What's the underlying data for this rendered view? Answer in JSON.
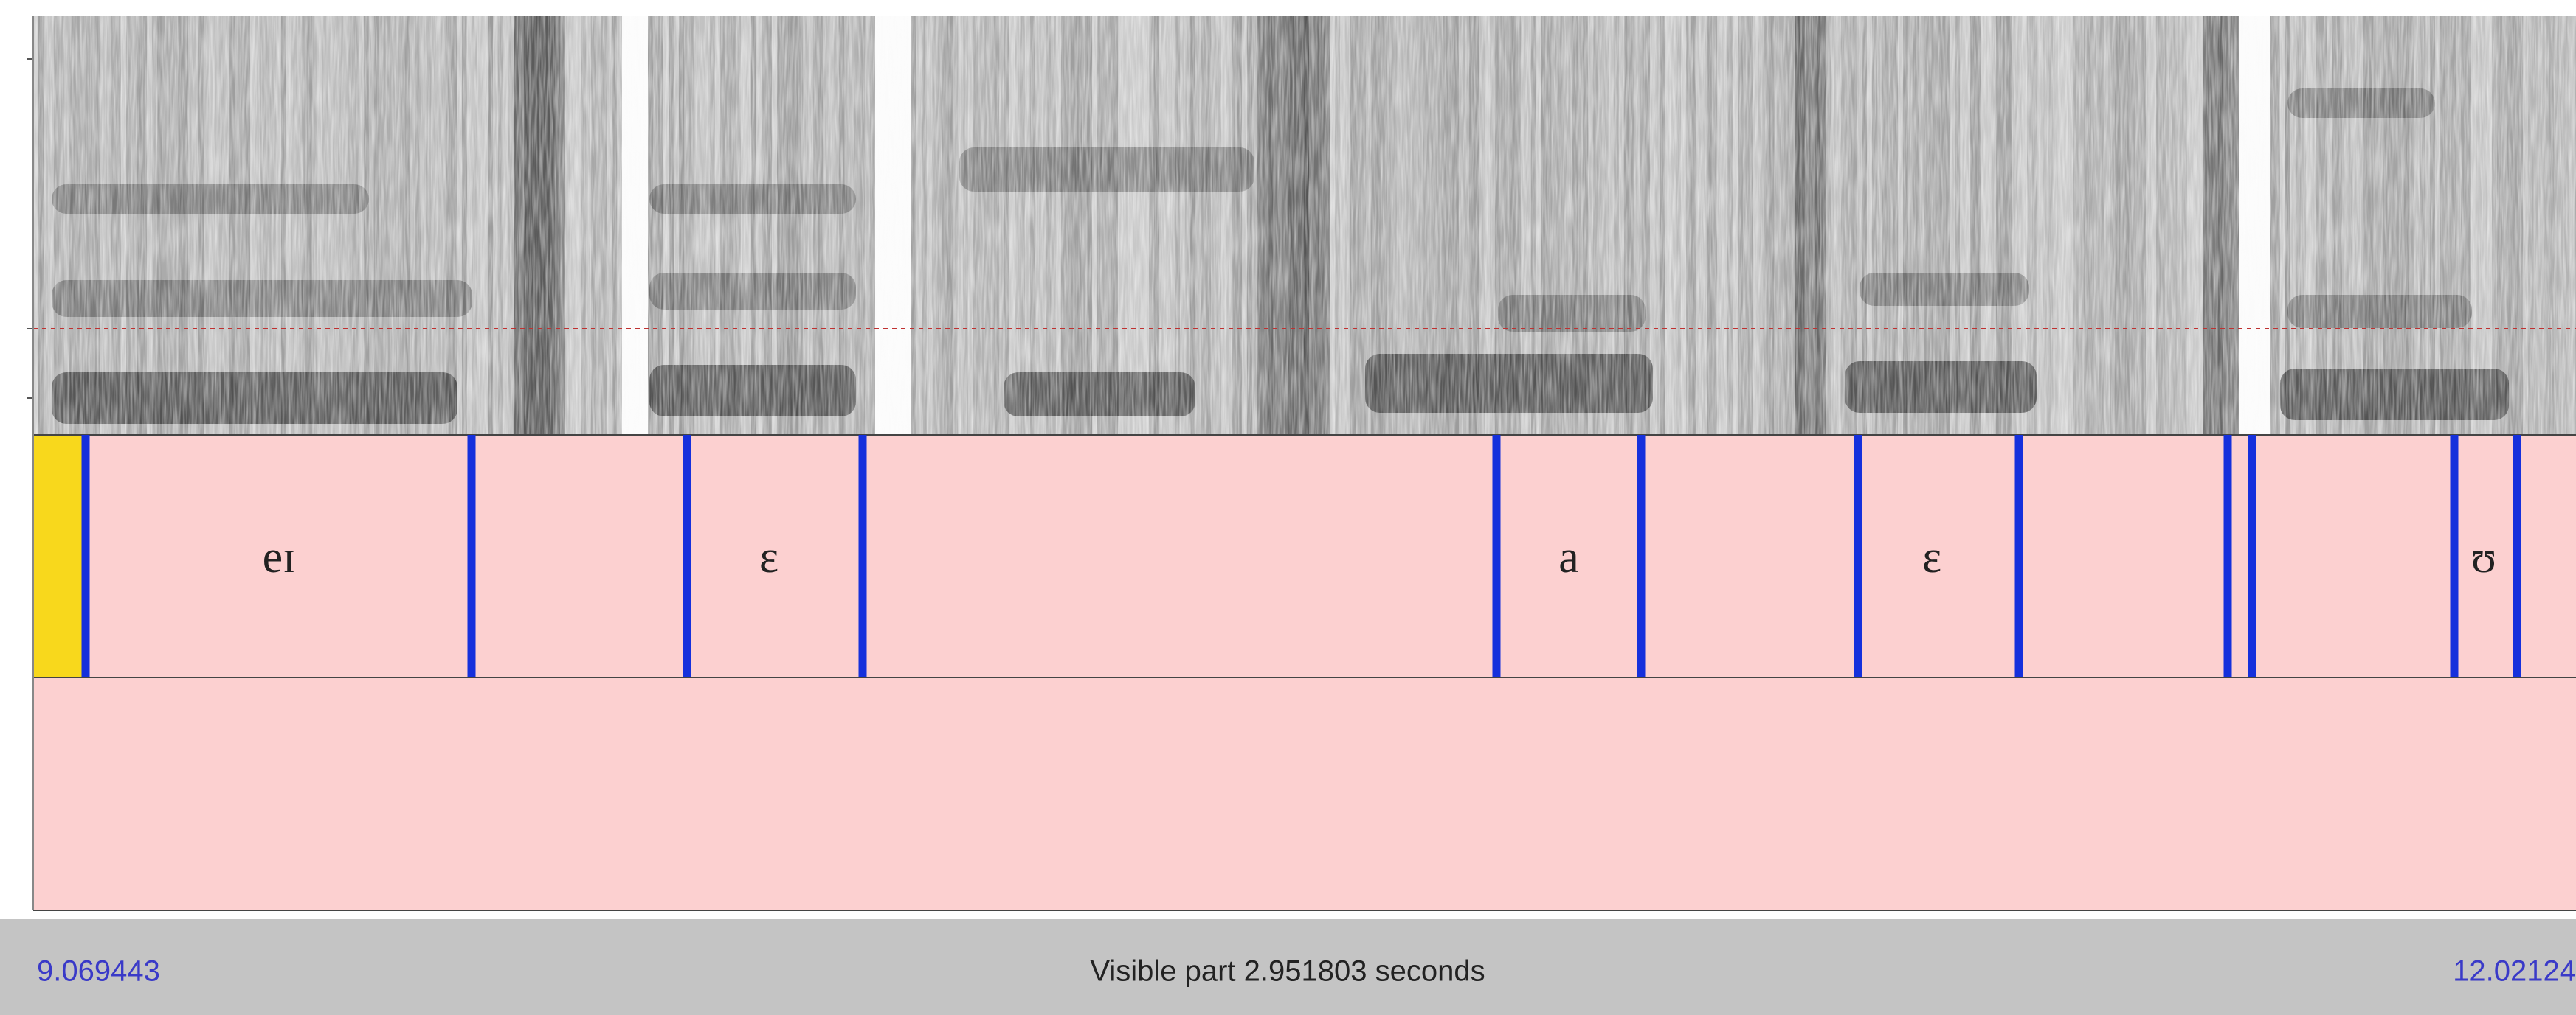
{
  "tier1": {
    "labels": [
      "eɪ",
      "ɛ",
      "a",
      "ɛ",
      "ʊ"
    ]
  },
  "footer": {
    "start": "9.069443",
    "visible": "Visible part 2.951803 seconds",
    "end": "12.02124"
  }
}
